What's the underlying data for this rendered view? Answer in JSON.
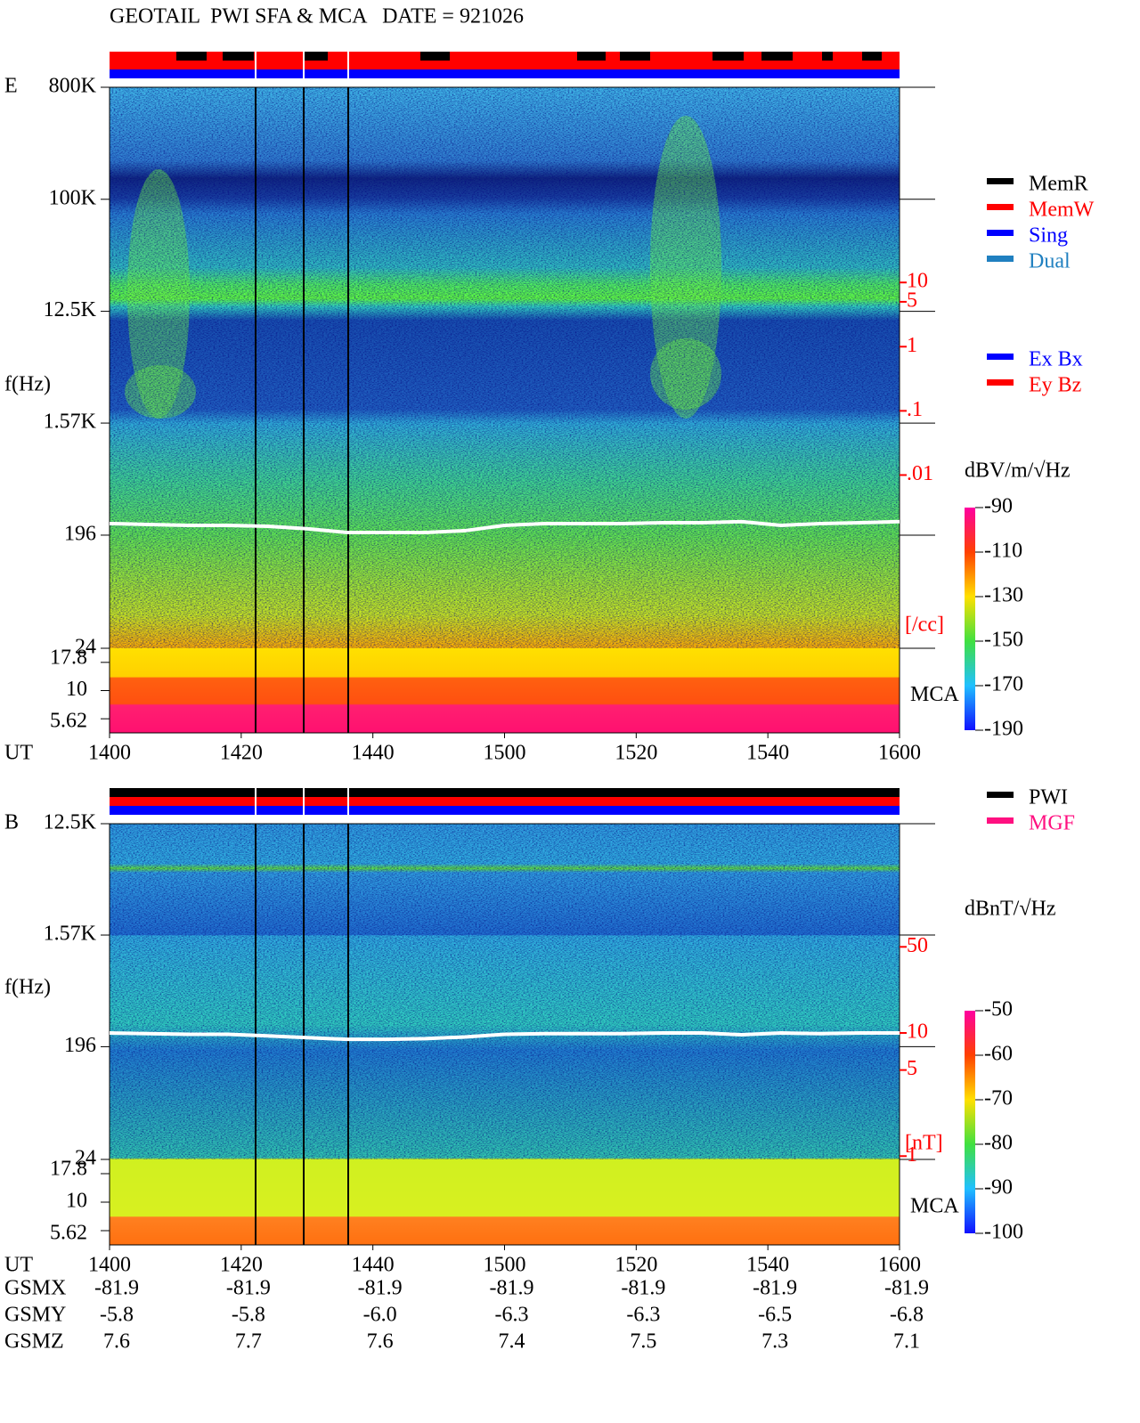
{
  "title": "GEOTAIL  PWI SFA & MCA   DATE = 921026",
  "chart_data": [
    {
      "type": "spectrogram",
      "panel_label": "E",
      "ylabel": "f(Hz)",
      "xlabel": "UT",
      "log_y": true,
      "ylim": [
        24,
        800000
      ],
      "yticks": [
        {
          "value": 800000,
          "label": "800K"
        },
        {
          "value": 100000,
          "label": "100K"
        },
        {
          "value": 12500,
          "label": "12.5K"
        },
        {
          "value": 1570,
          "label": "1.57K"
        },
        196,
        24
      ],
      "mca_label": "MCA",
      "mca_channels": [
        17.8,
        10,
        5.62
      ],
      "xticks": [
        "1400",
        "1420",
        "1440",
        "1500",
        "1520",
        "1540",
        "1600"
      ],
      "y2lim": [
        2e-05,
        11000
      ],
      "y2color": "#ff0000",
      "y2label": "[/cc]",
      "y2ticks": [
        10,
        5,
        1,
        {
          "value": 0.1,
          "label": ".1"
        },
        {
          "value": 0.01,
          "label": ".01"
        }
      ],
      "colorbar": {
        "label": "dBV/m/√Hz",
        "lim": [
          -190,
          -90
        ],
        "ticks": [
          -90,
          -110,
          -130,
          -150,
          -170,
          -190
        ]
      },
      "legend": [
        {
          "name": "MemR",
          "color": "#000000"
        },
        {
          "name": "MemW",
          "color": "#ff0000"
        },
        {
          "name": "Sing",
          "color": "#0000ff"
        },
        {
          "name": "Dual",
          "color": "#2080c0"
        }
      ],
      "legend2": [
        {
          "name": "Ex Bx",
          "color": "#0000ff"
        },
        {
          "name": "Ey Bz",
          "color": "#ff0000"
        }
      ],
      "lines": [
        {
          "color": "#ffffff",
          "values": [
            243,
            239,
            235,
            235,
            231,
            221,
            206,
            206,
            206,
            213,
            235,
            243,
            243,
            243,
            247,
            247,
            252,
            235,
            243,
            247,
            252
          ]
        }
      ]
    },
    {
      "type": "spectrogram",
      "panel_label": "B",
      "ylabel": "f(Hz)",
      "xlabel": "UT",
      "log_y": true,
      "ylim": [
        24,
        12500
      ],
      "yticks": [
        {
          "value": 12500,
          "label": "12.5K"
        },
        {
          "value": 1570,
          "label": "1.57K"
        },
        196,
        24
      ],
      "mca_label": "MCA",
      "mca_channels": [
        17.8,
        10,
        5.62
      ],
      "xticks": [
        "1400",
        "1420",
        "1440",
        "1500",
        "1520",
        "1540",
        "1600"
      ],
      "y2lim": [
        0.94,
        500
      ],
      "y2color": "#ff0000",
      "y2label": "[nT]",
      "y2ticks": [
        50,
        10,
        5,
        1
      ],
      "colorbar": {
        "label": "dBnT/√Hz",
        "lim": [
          -100,
          -50
        ],
        "ticks": [
          -50,
          -60,
          -70,
          -80,
          -90,
          -100
        ]
      },
      "legend": [
        {
          "name": "PWI",
          "color": "#000000"
        },
        {
          "name": "MGF",
          "color": "#ff1080"
        }
      ],
      "lines": [
        {
          "color": "#ffffff",
          "values": [
            253,
            250,
            247,
            247,
            240,
            232,
            225,
            225,
            228,
            235,
            247,
            250,
            250,
            250,
            253,
            253,
            245,
            253,
            250,
            253,
            253
          ]
        }
      ]
    }
  ],
  "orbit": {
    "rows": [
      {
        "label": "GSMX",
        "values": [
          "-81.9",
          "-81.9",
          "-81.9",
          "-81.9",
          "-81.9",
          "-81.9",
          "-81.9"
        ]
      },
      {
        "label": "GSMY",
        "values": [
          "-5.8",
          "-5.8",
          "-6.0",
          "-6.3",
          "-6.3",
          "-6.5",
          "-6.8"
        ]
      },
      {
        "label": "GSMZ",
        "values": [
          "7.6",
          "7.7",
          "7.6",
          "7.4",
          "7.5",
          "7.3",
          "7.1"
        ]
      }
    ]
  }
}
